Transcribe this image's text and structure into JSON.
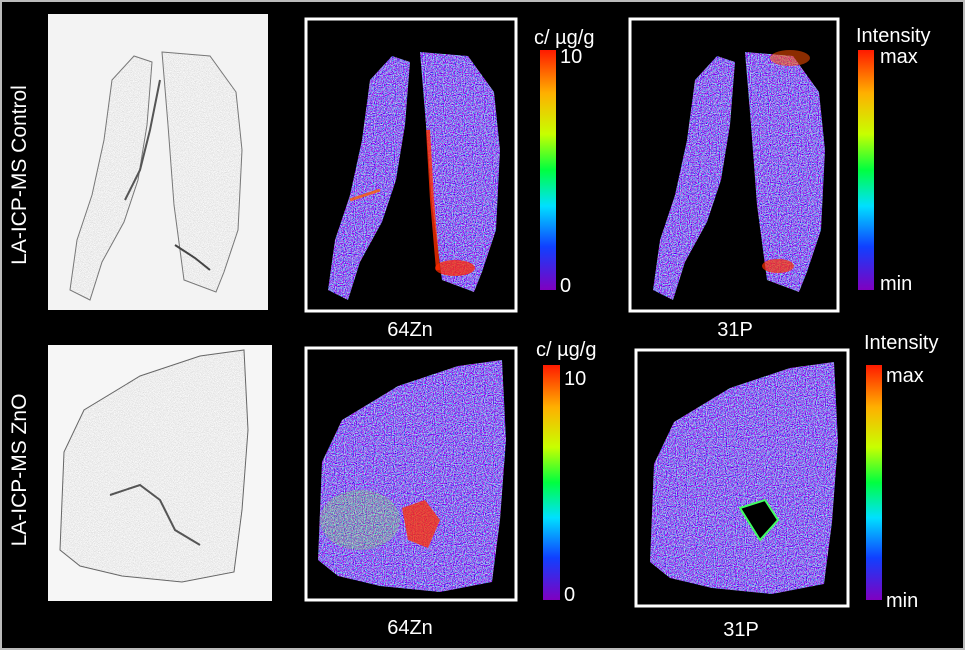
{
  "rows": [
    {
      "label": "LA-ICP-MS Control",
      "panels": [
        {
          "label": "64Zn",
          "scale": {
            "title": "c/ µg/g",
            "max": "10",
            "min": "0"
          }
        },
        {
          "label": "31P",
          "scale": {
            "title": "Intensity",
            "max": "max",
            "min": "min"
          }
        }
      ]
    },
    {
      "label": "LA-ICP-MS ZnO",
      "panels": [
        {
          "label": "64Zn",
          "scale": {
            "title": "c/ µg/g",
            "max": "10",
            "min": "0"
          }
        },
        {
          "label": "31P",
          "scale": {
            "title": "Intensity",
            "max": "max",
            "min": "min"
          }
        }
      ]
    }
  ]
}
